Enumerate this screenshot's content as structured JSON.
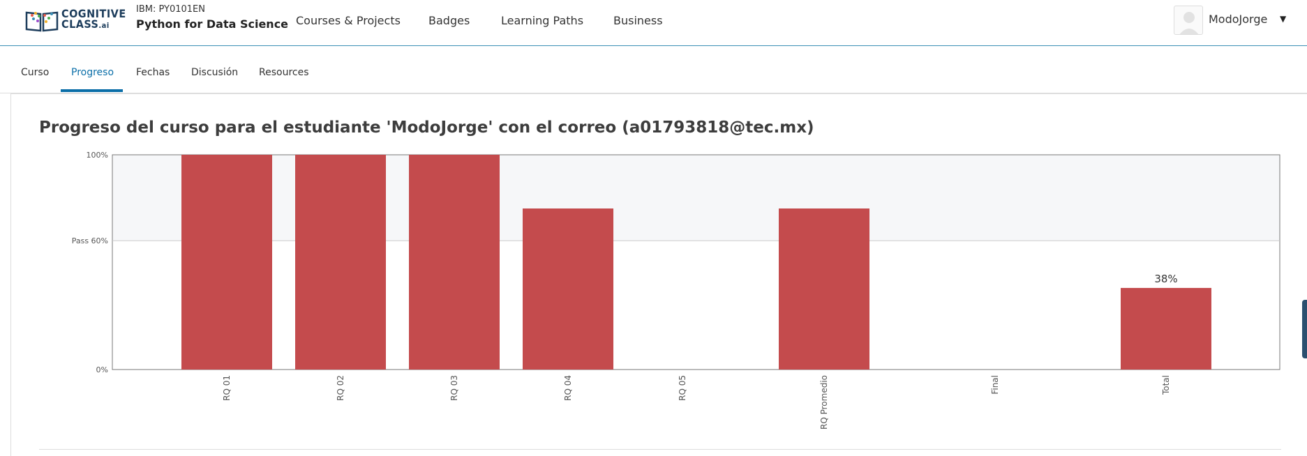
{
  "header": {
    "logo_line1": "COGNITIVE",
    "logo_line2": "CLASS",
    "logo_suffix": ".ai",
    "course_org": "IBM: PY0101EN",
    "course_name": "Python for Data Science",
    "nav": [
      "Courses & Projects",
      "Badges",
      "Learning Paths",
      "Business"
    ],
    "username": "ModoJorge"
  },
  "tabs": [
    {
      "label": "Curso",
      "active": false
    },
    {
      "label": "Progreso",
      "active": true
    },
    {
      "label": "Fechas",
      "active": false
    },
    {
      "label": "Discusión",
      "active": false
    },
    {
      "label": "Resources",
      "active": false
    }
  ],
  "progress": {
    "heading": "Progreso del curso para el estudiante 'ModoJorge' con el correo (a01793818@tec.mx)"
  },
  "colors": {
    "accent": "#0a6ea8",
    "bar": "#c44b4d",
    "pass_band": "#f6f7f9",
    "brand": "#1d3d5c"
  },
  "chart_data": {
    "type": "bar",
    "categories": [
      "RQ 01",
      "RQ 02",
      "RQ 03",
      "RQ 04",
      "RQ 05",
      "RQ Promedio",
      "Final",
      "Total"
    ],
    "values": [
      100,
      100,
      100,
      75,
      0,
      75,
      0,
      38
    ],
    "ylim": [
      0,
      100
    ],
    "y_tick_labels": [
      "0%",
      "Pass 60%",
      "100%"
    ],
    "y_ticks": [
      0,
      60,
      100
    ],
    "pass_threshold": 60,
    "data_labels": [
      {
        "category": "Total",
        "label": "38%"
      }
    ]
  }
}
